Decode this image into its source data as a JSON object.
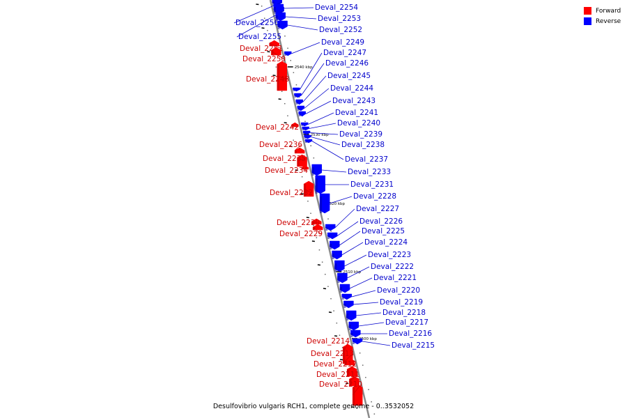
{
  "legend": {
    "forward_label": "Forward",
    "reverse_label": "Reverse",
    "forward_color": "#ff0000",
    "reverse_color": "#0000ff"
  },
  "caption": "Desulfovibrio vulgaris RCH1, complete genome - 0..3532052",
  "colors": {
    "backbone": "#8a8a8a",
    "forward": "#ff0000",
    "reverse": "#0000ff",
    "forward_label": "#cc0000",
    "reverse_label": "#0000cc"
  },
  "scale_marks": [
    "2540 kbp",
    "2530 kbp",
    "2520 kbp",
    "2510 kbp",
    "2500 kbp"
  ],
  "genes": [
    {
      "label": "Deval_2256",
      "strand": "reverse"
    },
    {
      "label": "Deval_2255",
      "strand": "reverse"
    },
    {
      "label": "Deval_2254",
      "strand": "reverse"
    },
    {
      "label": "Deval_2253",
      "strand": "reverse"
    },
    {
      "label": "Deval_2252",
      "strand": "reverse"
    },
    {
      "label": "Deval_2251",
      "strand": "forward"
    },
    {
      "label": "Deval_2250",
      "strand": "forward"
    },
    {
      "label": "Deval_2249",
      "strand": "reverse"
    },
    {
      "label": "Deval_2248",
      "strand": "forward"
    },
    {
      "label": "Deval_2247",
      "strand": "reverse"
    },
    {
      "label": "Deval_2246",
      "strand": "reverse"
    },
    {
      "label": "Deval_2245",
      "strand": "reverse"
    },
    {
      "label": "Deval_2244",
      "strand": "reverse"
    },
    {
      "label": "Deval_2243",
      "strand": "reverse"
    },
    {
      "label": "Deval_2242",
      "strand": "forward"
    },
    {
      "label": "Deval_2241",
      "strand": "reverse"
    },
    {
      "label": "Deval_2240",
      "strand": "reverse"
    },
    {
      "label": "Deval_2239",
      "strand": "reverse"
    },
    {
      "label": "Deval_2238",
      "strand": "reverse"
    },
    {
      "label": "Deval_2237",
      "strand": "reverse"
    },
    {
      "label": "Deval_2236",
      "strand": "forward"
    },
    {
      "label": "Deval_2235",
      "strand": "forward"
    },
    {
      "label": "Deval_2234",
      "strand": "forward"
    },
    {
      "label": "Deval_2233",
      "strand": "reverse"
    },
    {
      "label": "Deval_2232",
      "strand": "forward"
    },
    {
      "label": "Deval_2231",
      "strand": "reverse"
    },
    {
      "label": "Deval_2230",
      "strand": "forward"
    },
    {
      "label": "Deval_2229",
      "strand": "forward"
    },
    {
      "label": "Deval_2228",
      "strand": "reverse"
    },
    {
      "label": "Deval_2227",
      "strand": "reverse"
    },
    {
      "label": "Deval_2226",
      "strand": "reverse"
    },
    {
      "label": "Deval_2225",
      "strand": "reverse"
    },
    {
      "label": "Deval_2224",
      "strand": "reverse"
    },
    {
      "label": "Deval_2223",
      "strand": "reverse"
    },
    {
      "label": "Deval_2222",
      "strand": "reverse"
    },
    {
      "label": "Deval_2221",
      "strand": "reverse"
    },
    {
      "label": "Deval_2220",
      "strand": "reverse"
    },
    {
      "label": "Deval_2219",
      "strand": "reverse"
    },
    {
      "label": "Deval_2218",
      "strand": "reverse"
    },
    {
      "label": "Deval_2217",
      "strand": "reverse"
    },
    {
      "label": "Deval_2216",
      "strand": "reverse"
    },
    {
      "label": "Deval_2215",
      "strand": "reverse"
    },
    {
      "label": "Deval_2214",
      "strand": "forward"
    },
    {
      "label": "Deval_2213",
      "strand": "forward"
    },
    {
      "label": "Deval_2212",
      "strand": "forward"
    },
    {
      "label": "Deval_2211",
      "strand": "forward"
    },
    {
      "label": "Deval_2210",
      "strand": "forward"
    }
  ]
}
